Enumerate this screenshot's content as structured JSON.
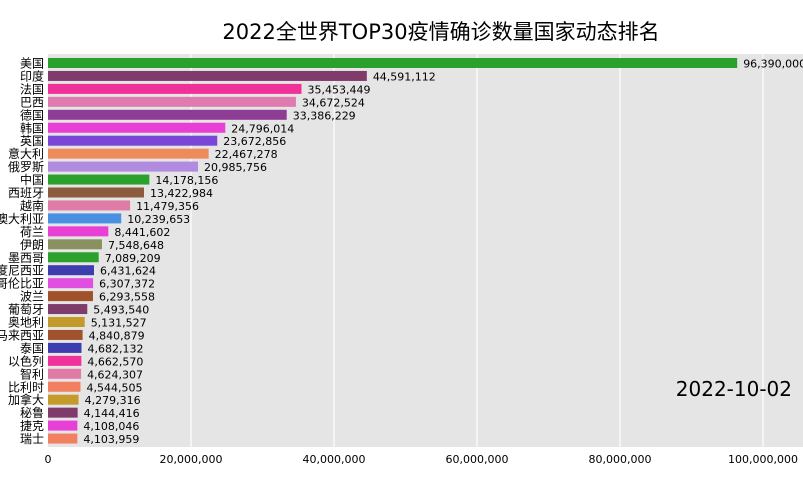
{
  "chart_data": {
    "type": "bar",
    "orientation": "horizontal",
    "title": "2022全世界TOP30疫情确诊数量国家动态排名",
    "date": "2022-10-02",
    "xlabel": "",
    "ylabel": "",
    "xlim": [
      0,
      100000000
    ],
    "x_ticks": [
      {
        "value": 0,
        "label": "0"
      },
      {
        "value": 20000000,
        "label": "20,000,000"
      },
      {
        "value": 40000000,
        "label": "40,000,000"
      },
      {
        "value": 60000000,
        "label": "60,000,000"
      },
      {
        "value": 80000000,
        "label": "80,000,000"
      },
      {
        "value": 100000000,
        "label": "100,000,000"
      }
    ],
    "grid": true,
    "categories": [
      "美国",
      "印度",
      "法国",
      "巴西",
      "德国",
      "韩国",
      "英国",
      "意大利",
      "俄罗斯",
      "中国",
      "西班牙",
      "越南",
      "澳大利亚",
      "荷兰",
      "伊朗",
      "墨西哥",
      "印度尼西亚",
      "哥伦比亚",
      "波兰",
      "葡萄牙",
      "奥地利",
      "马来西亚",
      "泰国",
      "以色列",
      "智利",
      "比利时",
      "加拿大",
      "秘鲁",
      "捷克",
      "瑞士"
    ],
    "values": [
      96390000,
      44591112,
      35453449,
      34672524,
      33386229,
      24796014,
      23672856,
      22467278,
      20985756,
      14178156,
      13422984,
      11479356,
      10239653,
      8441602,
      7548648,
      7089209,
      6431624,
      6307372,
      6293558,
      5493540,
      5131527,
      4840879,
      4682132,
      4662570,
      4624307,
      4544505,
      4279316,
      4144416,
      4108046,
      4103959
    ],
    "value_labels": [
      "96,390,000",
      "44,591,112",
      "35,453,449",
      "34,672,524",
      "33,386,229",
      "24,796,014",
      "23,672,856",
      "22,467,278",
      "20,985,756",
      "14,178,156",
      "13,422,984",
      "11,479,356",
      "10,239,653",
      "8,441,602",
      "7,548,648",
      "7,089,209",
      "6,431,624",
      "6,307,372",
      "6,293,558",
      "5,493,540",
      "5,131,527",
      "4,840,879",
      "4,682,132",
      "4,662,570",
      "4,624,307",
      "4,544,505",
      "4,279,316",
      "4,144,416",
      "4,108,046",
      "4,103,959"
    ],
    "colors": [
      "#2ca02c",
      "#7f3b6b",
      "#f0319a",
      "#e07bb0",
      "#8e3d94",
      "#e83fd7",
      "#7b46d8",
      "#ef8a5a",
      "#b08bdf",
      "#2ca02c",
      "#8c5a3c",
      "#e07ba5",
      "#4a90e2",
      "#e83fd7",
      "#8a9160",
      "#2ca02c",
      "#3d3db0",
      "#e04fe0",
      "#a0522d",
      "#7f3b6b",
      "#c49a2a",
      "#a0522d",
      "#3d3db0",
      "#f0319a",
      "#e07ba5",
      "#f08060",
      "#c49a2a",
      "#7f3b6b",
      "#e83fd7",
      "#f08060"
    ]
  }
}
